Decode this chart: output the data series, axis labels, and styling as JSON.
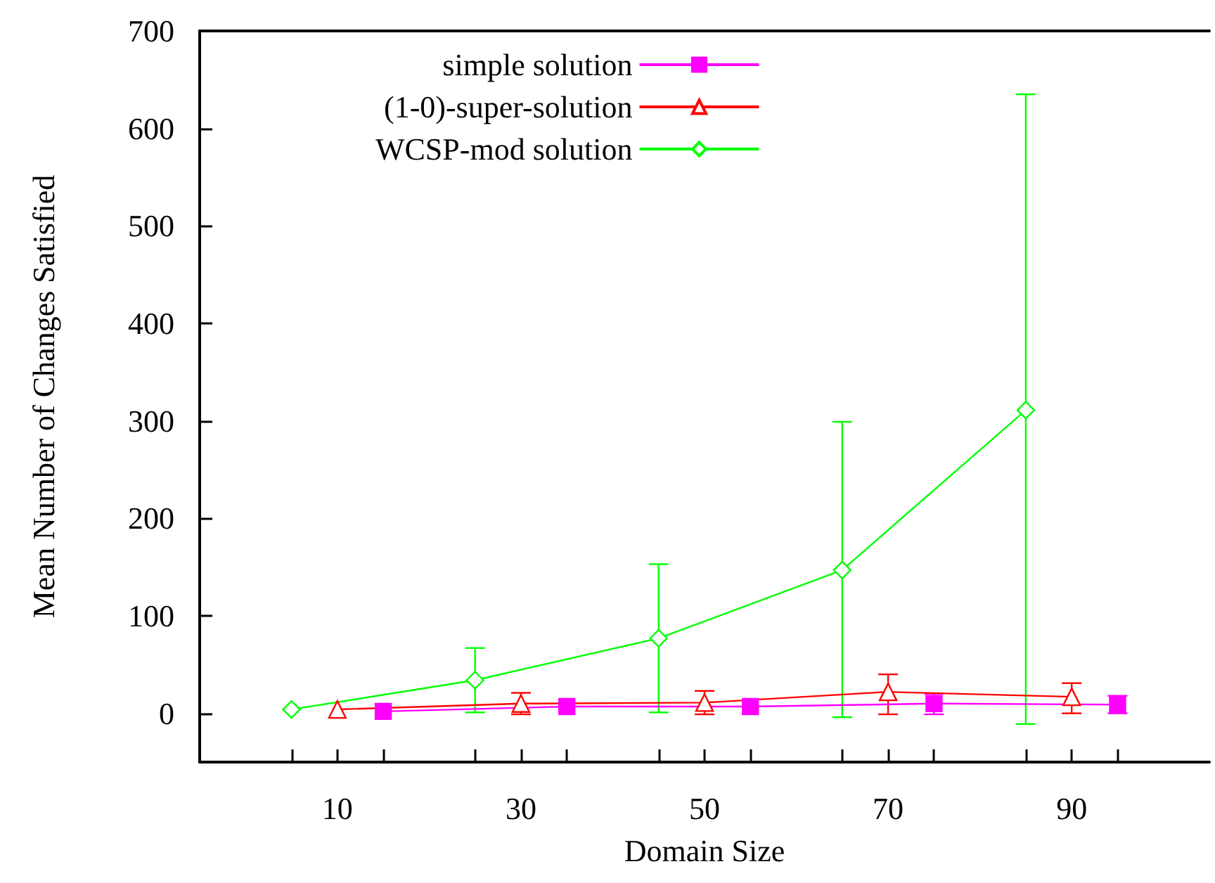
{
  "chart_data": {
    "type": "line",
    "xlabel": "Domain Size",
    "ylabel": "Mean Number of Changes Satisfied",
    "xlim": [
      -5,
      105
    ],
    "ylim": [
      -50,
      700
    ],
    "xticks": [
      {
        "value": 5,
        "label": null
      },
      10,
      {
        "value": 15,
        "label": null
      },
      {
        "value": 25,
        "label": null
      },
      30,
      {
        "value": 35,
        "label": null
      },
      {
        "value": 45,
        "label": null
      },
      50,
      {
        "value": 55,
        "label": null
      },
      {
        "value": 65,
        "label": null
      },
      70,
      {
        "value": 75,
        "label": null
      },
      {
        "value": 85,
        "label": null
      },
      90,
      {
        "value": 95,
        "label": null
      }
    ],
    "yticks": [
      0,
      100,
      200,
      300,
      400,
      500,
      600,
      700
    ],
    "grid": false,
    "legend": "top",
    "series": [
      {
        "name": "simple solution",
        "color": "#ff00ff",
        "marker": "square",
        "x": [
          15,
          35,
          55,
          75,
          95
        ],
        "values": [
          2,
          7,
          7,
          10,
          9
        ],
        "errors": [
          null,
          null,
          null,
          [
            -1,
            20
          ],
          [
            0,
            18
          ]
        ]
      },
      {
        "name": "(1-0)-super-solution",
        "color": "#ff0000",
        "marker": "triangle",
        "x": [
          10,
          30,
          50,
          70,
          90
        ],
        "values": [
          4,
          10,
          11,
          22,
          17
        ],
        "errors": [
          null,
          [
            -1,
            21
          ],
          [
            -1,
            23
          ],
          [
            -1,
            40
          ],
          [
            0,
            31
          ]
        ]
      },
      {
        "name": "WCSP-mod solution",
        "color": "#00ff00",
        "marker": "diamond",
        "x": [
          5,
          25,
          45,
          65,
          85
        ],
        "values": [
          4,
          34,
          77,
          147,
          311
        ],
        "errors": [
          null,
          [
            1,
            67
          ],
          [
            1,
            153
          ],
          [
            -4,
            299
          ],
          [
            -11,
            635
          ]
        ]
      }
    ]
  }
}
